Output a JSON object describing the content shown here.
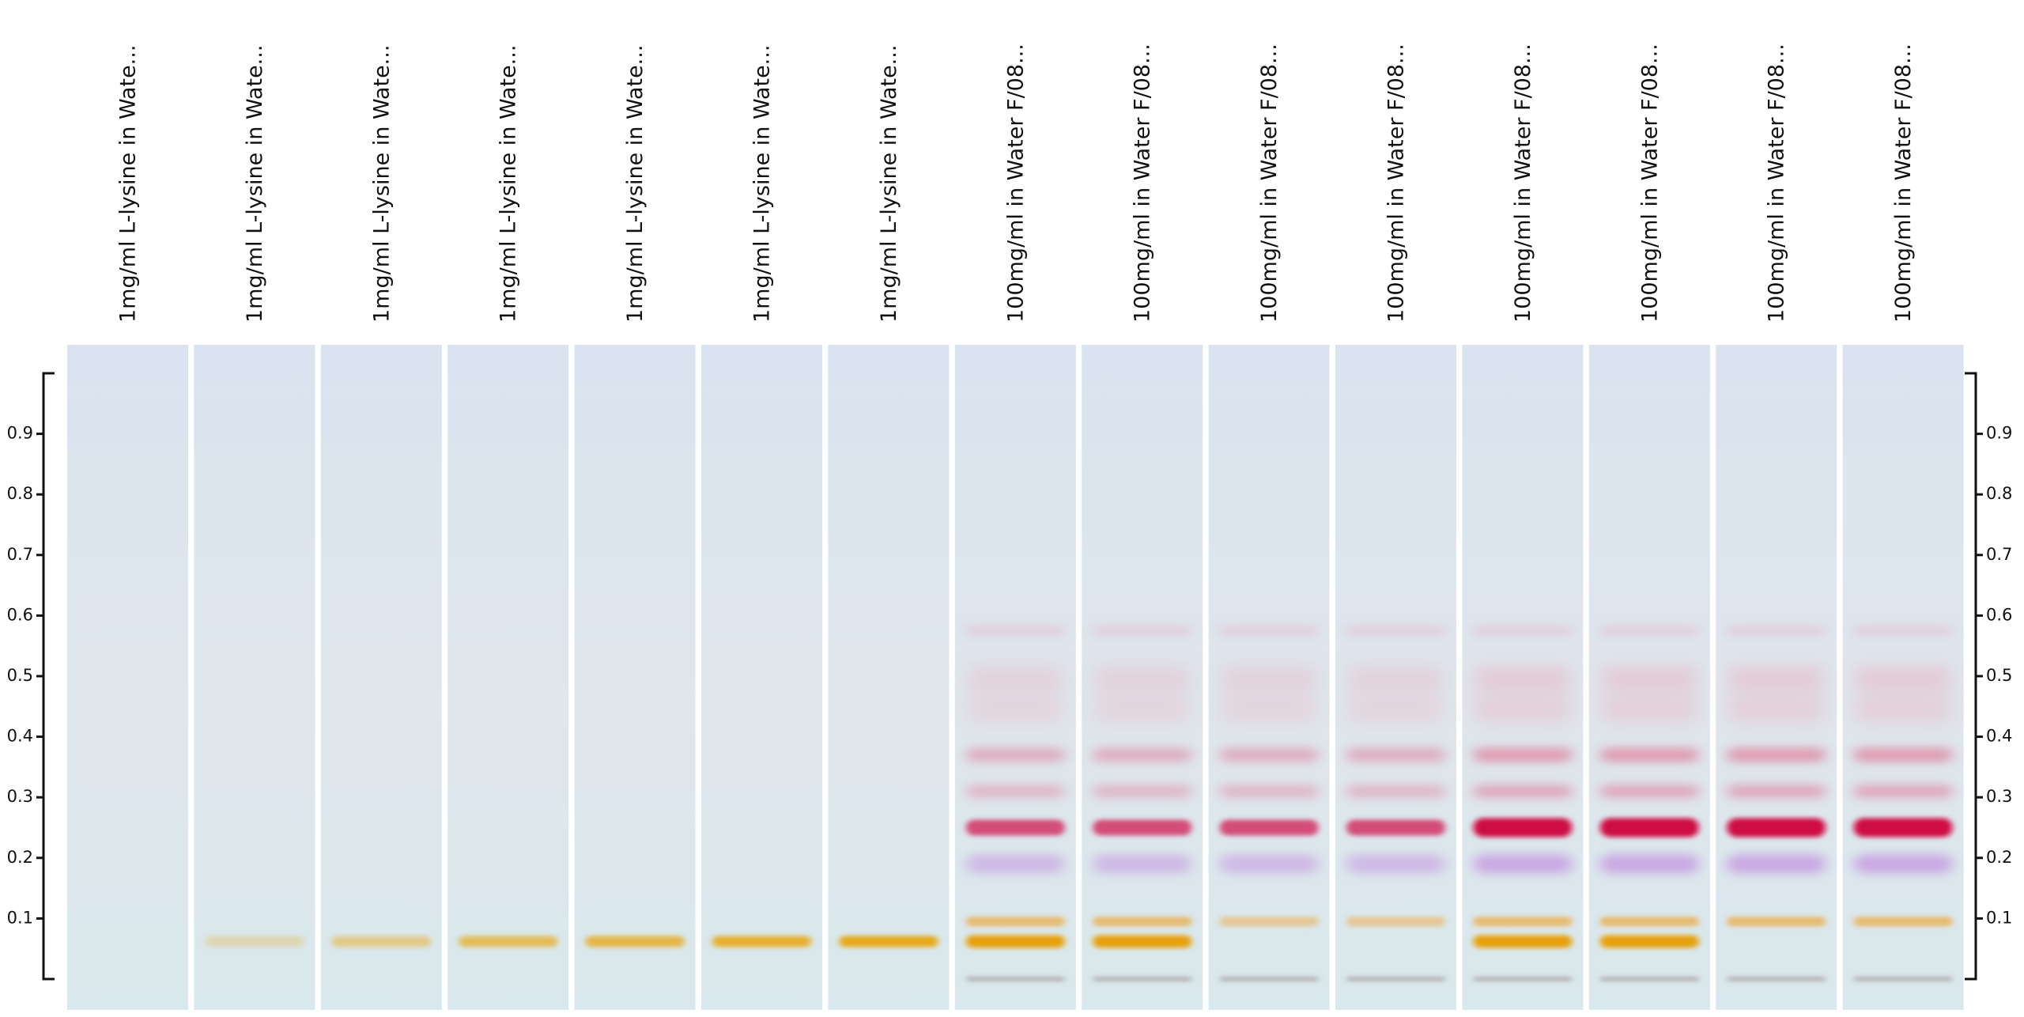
{
  "lanes": [
    "1mg/ml L-lysine in Wate...",
    "1mg/ml L-lysine in Wate...",
    "1mg/ml L-lysine in Wate...",
    "1mg/ml L-lysine in Wate...",
    "1mg/ml L-lysine in Wate...",
    "1mg/ml L-lysine in Wate...",
    "1mg/ml L-lysine in Wate...",
    "100mg/ml in Water F/08...",
    "100mg/ml in Water F/08...",
    "100mg/ml in Water F/08...",
    "100mg/ml in Water F/08...",
    "100mg/ml in Water F/08...",
    "100mg/ml in Water F/08...",
    "100mg/ml in Water F/08...",
    "100mg/ml in Water F/08..."
  ],
  "rf_axis": {
    "ylim": [
      0,
      1
    ],
    "yticks": [
      0.1,
      0.2,
      0.3,
      0.4,
      0.5,
      0.6,
      0.7,
      0.8,
      0.9
    ]
  }
}
